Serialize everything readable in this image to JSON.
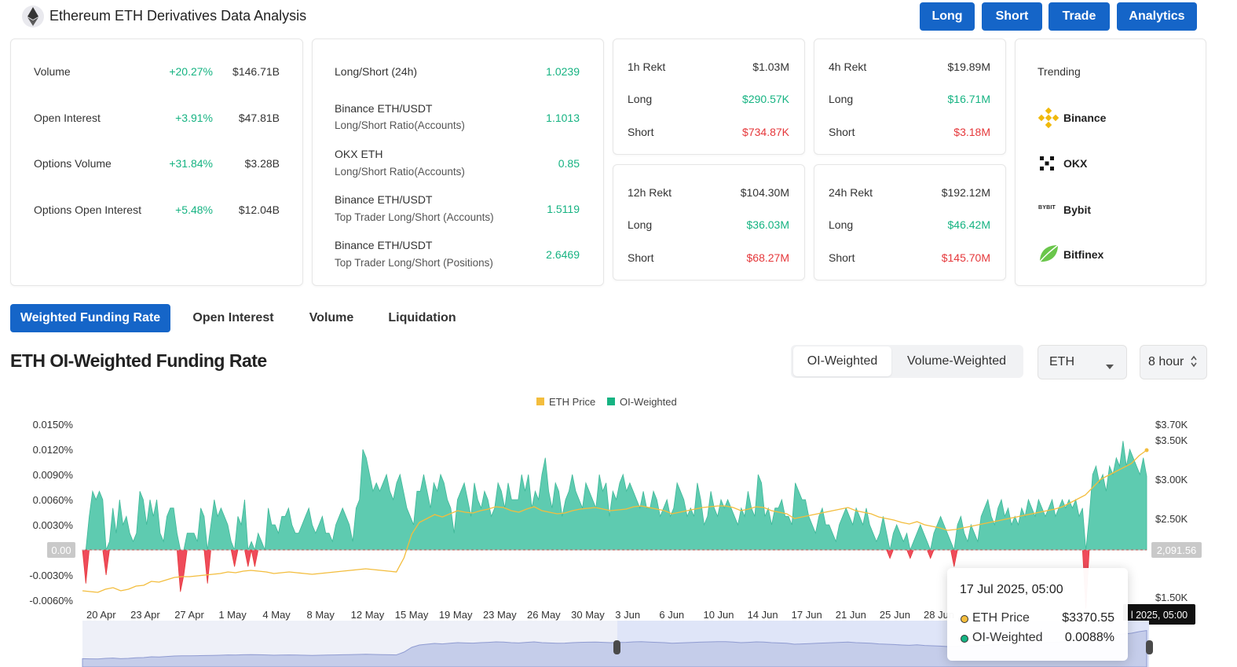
{
  "header": {
    "title": "Ethereum ETH Derivatives Data Analysis",
    "buttons": [
      "Long",
      "Short",
      "Trade",
      "Analytics"
    ]
  },
  "market": {
    "rows": [
      {
        "label": "Volume",
        "change": "+20.27%",
        "value": "$146.71B"
      },
      {
        "label": "Open Interest",
        "change": "+3.91%",
        "value": "$47.81B"
      },
      {
        "label": "Options Volume",
        "change": "+31.84%",
        "value": "$3.28B"
      },
      {
        "label": "Options Open Interest",
        "change": "+5.48%",
        "value": "$12.04B"
      }
    ]
  },
  "ratios": {
    "rows": [
      {
        "line1": "Long/Short (24h)",
        "line2": "",
        "value": "1.0239"
      },
      {
        "line1": "Binance ETH/USDT",
        "line2": "Long/Short Ratio(Accounts)",
        "value": "1.1013"
      },
      {
        "line1": "OKX ETH",
        "line2": "Long/Short Ratio(Accounts)",
        "value": "0.85"
      },
      {
        "line1": "Binance ETH/USDT",
        "line2": "Top Trader Long/Short (Accounts)",
        "value": "1.5119"
      },
      {
        "line1": "Binance ETH/USDT",
        "line2": "Top Trader Long/Short (Positions)",
        "value": "2.6469"
      }
    ]
  },
  "rekt": [
    {
      "title": "1h Rekt",
      "total": "$1.03M",
      "long_label": "Long",
      "long": "$290.57K",
      "short_label": "Short",
      "short": "$734.87K"
    },
    {
      "title": "4h Rekt",
      "total": "$19.89M",
      "long_label": "Long",
      "long": "$16.71M",
      "short_label": "Short",
      "short": "$3.18M"
    },
    {
      "title": "12h Rekt",
      "total": "$104.30M",
      "long_label": "Long",
      "long": "$36.03M",
      "short_label": "Short",
      "short": "$68.27M"
    },
    {
      "title": "24h Rekt",
      "total": "$192.12M",
      "long_label": "Long",
      "long": "$46.42M",
      "short_label": "Short",
      "short": "$145.70M"
    }
  ],
  "trending": {
    "title": "Trending",
    "items": [
      {
        "name": "Binance",
        "icon": "binance-icon"
      },
      {
        "name": "OKX",
        "icon": "okx-icon"
      },
      {
        "name": "Bybit",
        "icon": "bybit-icon",
        "icon_text": "BYBIT"
      },
      {
        "name": "Bitfinex",
        "icon": "bitfinex-icon"
      }
    ]
  },
  "tabs": [
    "Weighted Funding Rate",
    "Open Interest",
    "Volume",
    "Liquidation"
  ],
  "chart_section": {
    "title": "ETH OI-Weighted Funding Rate",
    "segments": [
      "OI-Weighted",
      "Volume-Weighted"
    ],
    "coin_select": "ETH",
    "interval_select": "8 hour"
  },
  "tooltip": {
    "date": "17 Jul 2025, 05:00",
    "price_label": "ETH Price",
    "price_value": "$3370.55",
    "rate_label": "OI-Weighted",
    "rate_value": "0.0088%"
  },
  "colors": {
    "accent": "#1565c8",
    "positive": "#16b382",
    "negative": "#e5383b",
    "area_positive": "#5ecbb0",
    "area_negative": "#ef4b5a",
    "price_line": "#f3bd3d"
  },
  "chart_data": {
    "type": "area",
    "legend": [
      "ETH Price",
      "OI-Weighted"
    ],
    "legend_position": "top-center",
    "y_left_ticks": [
      "0.0150%",
      "0.0120%",
      "0.0090%",
      "0.0060%",
      "0.0030%",
      "0.00",
      "-0.0030%",
      "-0.0060%"
    ],
    "y_right_ticks": [
      "$3.70K",
      "$3.50K",
      "$3.00K",
      "$2.50K",
      "$1.50K"
    ],
    "x_ticks": [
      "20 Apr",
      "23 Apr",
      "27 Apr",
      "1 May",
      "4 May",
      "8 May",
      "12 May",
      "15 May",
      "19 May",
      "23 May",
      "26 May",
      "30 May",
      "3 Jun",
      "6 Jun",
      "10 Jun",
      "14 Jun",
      "17 Jun",
      "21 Jun",
      "25 Jun",
      "28 Jun"
    ],
    "y_left_range": [
      -0.006,
      0.015
    ],
    "y_right_range": [
      1500,
      3700
    ],
    "zero_label": "0.00",
    "price_marker": "2,091.56",
    "crosshair_label": "l 2025, 05:00",
    "funding_rate_pct": [
      0.0,
      -0.004,
      0.004,
      0.007,
      0.006,
      0.007,
      0.006,
      -0.003,
      0.001,
      0.005,
      0.002,
      0.006,
      0.003,
      0.004,
      0.002,
      0.001,
      0.002,
      0.007,
      0.006,
      0.003,
      0.006,
      0.004,
      0.006,
      0.002,
      0.001,
      0.004,
      0.005,
      0.005,
      0.002,
      -0.005,
      -0.003,
      0.002,
      0.002,
      0.002,
      0.001,
      0.005,
      0.004,
      -0.004,
      0.003,
      0.006,
      0.004,
      0.005,
      0.004,
      0.003,
      0.001,
      -0.002,
      0.004,
      0.003,
      0.006,
      -0.002,
      0.001,
      -0.002,
      0.002,
      0.001,
      0.0,
      0.005,
      0.003,
      0.003,
      0.002,
      0.004,
      0.004,
      0.005,
      0.003,
      0.002,
      0.002,
      0.003,
      0.004,
      0.005,
      0.003,
      0.002,
      0.003,
      0.004,
      0.002,
      0.002,
      0.001,
      0.003,
      0.004,
      0.005,
      0.004,
      0.003,
      0.001,
      0.005,
      0.006,
      0.012,
      0.011,
      0.009,
      0.007,
      0.008,
      0.007,
      0.008,
      0.009,
      0.007,
      0.006,
      0.008,
      0.009,
      0.007,
      0.005,
      0.004,
      0.003,
      0.007,
      0.007,
      0.009,
      0.007,
      0.005,
      0.008,
      0.007,
      0.009,
      0.008,
      0.006,
      0.005,
      0.002,
      0.006,
      0.007,
      0.008,
      0.006,
      0.004,
      0.008,
      0.006,
      0.005,
      0.007,
      0.006,
      0.004,
      0.005,
      0.008,
      0.007,
      0.005,
      0.008,
      0.006,
      0.006,
      0.006,
      0.009,
      0.007,
      0.009,
      0.005,
      0.007,
      0.006,
      0.009,
      0.011,
      0.007,
      0.005,
      0.008,
      0.007,
      0.004,
      0.006,
      0.007,
      0.009,
      0.007,
      0.006,
      0.005,
      0.008,
      0.007,
      0.006,
      0.005,
      0.009,
      0.007,
      0.008,
      0.004,
      0.007,
      0.006,
      0.008,
      0.009,
      0.007,
      0.008,
      0.007,
      0.006,
      0.005,
      0.007,
      0.005,
      0.005,
      0.007,
      0.006,
      0.004,
      0.005,
      0.006,
      0.004,
      0.005,
      0.008,
      0.007,
      0.006,
      0.004,
      0.005,
      0.004,
      0.008,
      0.006,
      0.003,
      0.004,
      0.007,
      0.005,
      0.004,
      0.006,
      0.005,
      0.006,
      0.005,
      0.004,
      0.003,
      0.005,
      0.004,
      0.007,
      0.005,
      0.004,
      0.009,
      0.008,
      0.004,
      0.005,
      0.003,
      0.005,
      0.005,
      0.006,
      0.004,
      0.004,
      0.003,
      0.008,
      0.007,
      0.006,
      0.006,
      0.004,
      0.003,
      0.002,
      0.004,
      0.005,
      0.003,
      0.003,
      0.002,
      0.001,
      0.003,
      0.004,
      0.005,
      0.004,
      0.003,
      0.005,
      0.004,
      0.003,
      0.005,
      0.003,
      0.002,
      0.001,
      0.002,
      0.004,
      0.002,
      -0.001,
      0.002,
      0.003,
      0.002,
      0.001,
      0.002,
      -0.001,
      0.001,
      0.002,
      0.003,
      0.002,
      0.001,
      -0.001,
      0.002,
      0.003,
      0.004,
      0.003,
      0.002,
      0.001,
      -0.002,
      0.003,
      0.004,
      0.002,
      0.001,
      0.003,
      0.002,
      0.001,
      0.004,
      0.005,
      0.006,
      0.004,
      0.003,
      0.005,
      0.006,
      0.004,
      0.005,
      0.003,
      0.004,
      0.003,
      0.005,
      0.004,
      0.006,
      0.005,
      0.004,
      0.006,
      0.005,
      0.004,
      0.005,
      0.006,
      0.004,
      0.005,
      0.006,
      0.005,
      0.006,
      0.005,
      0.006,
      0.004,
      0.005,
      -0.007,
      0.004,
      0.009,
      0.01,
      0.008,
      0.009,
      0.007,
      0.01,
      0.009,
      0.011,
      0.01,
      0.013,
      0.01,
      0.012,
      0.011,
      0.01,
      0.009,
      0.011,
      0.0088
    ],
    "eth_price": [
      1580,
      1570,
      1560,
      1600,
      1620,
      1580,
      1600,
      1640,
      1650,
      1700,
      1690,
      1720,
      1750,
      1760,
      1760,
      1770,
      1780,
      1790,
      1800,
      1820,
      1810,
      1830,
      1840,
      1830,
      1820,
      1800,
      1810,
      1820,
      1810,
      1800,
      1790,
      1800,
      1810,
      1820,
      1830,
      1840,
      1850,
      1860,
      1850,
      1840,
      1830,
      1820,
      2000,
      2300,
      2450,
      2500,
      2550,
      2520,
      2560,
      2600,
      2580,
      2570,
      2600,
      2620,
      2650,
      2640,
      2600,
      2580,
      2620,
      2650,
      2600,
      2580,
      2560,
      2570,
      2600,
      2620,
      2630,
      2640,
      2620,
      2600,
      2610,
      2620,
      2650,
      2660,
      2640,
      2620,
      2600,
      2560,
      2580,
      2600,
      2620,
      2640,
      2650,
      2660,
      2660,
      2640,
      2600,
      2620,
      2650,
      2640,
      2600,
      2580,
      2560,
      2500,
      2520,
      2540,
      2560,
      2580,
      2600,
      2620,
      2640,
      2600,
      2580,
      2560,
      2520,
      2500,
      2480,
      2450,
      2430,
      2460,
      2420,
      2400,
      2380,
      2350,
      2360,
      2380,
      2400,
      2420,
      2440,
      2460,
      2480,
      2500,
      2520,
      2540,
      2560,
      2580,
      2600,
      2620,
      2650,
      2700,
      2750,
      2800,
      2900,
      3000,
      3050,
      3100,
      3150,
      3200,
      3300,
      3370
    ]
  }
}
